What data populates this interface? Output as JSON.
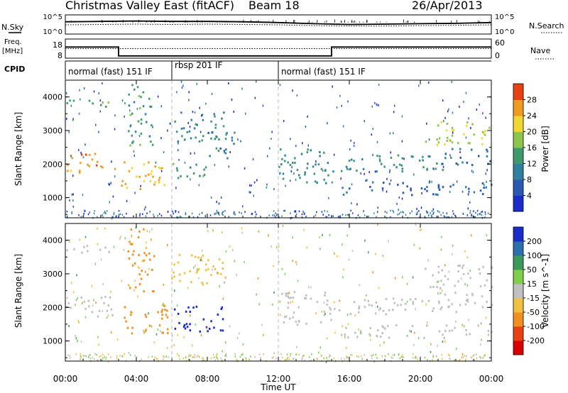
{
  "header": {
    "station": "Christmas Valley East (fitACF)",
    "beam": "Beam 18",
    "date": "26/Apr/2013"
  },
  "top_panels": {
    "nsky_label": "N.Sky",
    "nsearch_label": "N.Search",
    "noise_left_ticks": [
      "10^5",
      "10^0"
    ],
    "noise_right_ticks": [
      "10^5",
      "10^0"
    ],
    "freq_label_1": "Freq.",
    "freq_label_2": "[MHz]",
    "freq_left_ticks": [
      "18",
      "8"
    ],
    "nave_label": "Nave",
    "nave_right_ticks": [
      "60",
      "0"
    ],
    "cpid_label": "CPID",
    "cpid_segments": [
      {
        "label": "normal (fast) 151 IF",
        "start": 0,
        "end": 6
      },
      {
        "label": "rbsp 201 IF",
        "start": 6,
        "end": 12
      },
      {
        "label": "normal (fast) 151 IF",
        "start": 12,
        "end": 24
      }
    ]
  },
  "chart_data": [
    {
      "type": "line",
      "title": "Noise",
      "series": [
        {
          "name": "N.Sky",
          "x": [
            0,
            2,
            4,
            6,
            8,
            10,
            12,
            14,
            16,
            18,
            20,
            22,
            24
          ],
          "values": [
            3.2,
            3.3,
            3.4,
            3.3,
            3.3,
            3.2,
            3.0,
            2.7,
            2.5,
            2.6,
            2.7,
            2.8,
            3.0
          ]
        },
        {
          "name": "N.Search",
          "x": [
            0,
            2,
            4,
            6,
            8,
            10,
            12,
            14,
            16,
            18,
            20,
            22,
            24
          ],
          "values": [
            2.4,
            2.5,
            2.6,
            2.5,
            2.6,
            2.5,
            2.4,
            2.2,
            2.1,
            2.1,
            2.2,
            2.3,
            2.4
          ]
        }
      ]
    },
    {
      "type": "line",
      "title": "Frequency / Nave",
      "series": [
        {
          "name": "Freq",
          "x": [
            0,
            3,
            3,
            15,
            15,
            24
          ],
          "values": [
            15.5,
            15.5,
            9.5,
            9.5,
            15.5,
            15.5
          ]
        },
        {
          "name": "Nave",
          "x": [
            0,
            24
          ],
          "values": [
            30,
            30
          ]
        }
      ]
    },
    {
      "type": "heatmap",
      "title": "Power",
      "xlabel": "Time UT",
      "ylabel": "Slant Range [km]",
      "xlim": [
        0,
        24
      ],
      "ylim": [
        400,
        4500
      ],
      "x_ticks": [
        "00:00",
        "04:00",
        "08:00",
        "12:00",
        "16:00",
        "20:00",
        "00:00"
      ],
      "y_ticks": [
        1000,
        2000,
        3000,
        4000
      ],
      "colorbar_label": "Power [dB]",
      "colorbar_ticks": [
        4,
        8,
        12,
        16,
        20,
        24,
        28
      ],
      "scatter_bands": [
        {
          "t0": 0,
          "t1": 2.8,
          "r0": 1750,
          "r1": 2350,
          "level": 26
        },
        {
          "t0": 0,
          "t1": 2.5,
          "r0": 3650,
          "r1": 3950,
          "level": 14
        },
        {
          "t0": 3.0,
          "t1": 5.8,
          "r0": 1250,
          "r1": 2100,
          "level": 24
        },
        {
          "t0": 3.5,
          "t1": 5.0,
          "r0": 2500,
          "r1": 4400,
          "level": 14
        },
        {
          "t0": 5.8,
          "t1": 9.0,
          "r0": 2700,
          "r1": 3600,
          "level": 12
        },
        {
          "t0": 6.0,
          "t1": 8.0,
          "r0": 1500,
          "r1": 2100,
          "level": 14
        },
        {
          "t0": 8.0,
          "t1": 9.5,
          "r0": 2000,
          "r1": 3000,
          "level": 10
        },
        {
          "t0": 12.0,
          "t1": 15.0,
          "r0": 1450,
          "r1": 2500,
          "level": 13
        },
        {
          "t0": 14.5,
          "t1": 22.0,
          "r0": 1800,
          "r1": 2300,
          "level": 13
        },
        {
          "t0": 15.5,
          "t1": 24.0,
          "r0": 1100,
          "r1": 1500,
          "level": 7
        },
        {
          "t0": 20.0,
          "t1": 24.0,
          "r0": 2600,
          "r1": 3300,
          "level": 19
        },
        {
          "t0": 21.0,
          "t1": 24.0,
          "r0": 2000,
          "r1": 2500,
          "level": 9
        }
      ]
    },
    {
      "type": "heatmap",
      "title": "Velocity",
      "xlabel": "Time UT",
      "ylabel": "Slant Range [km]",
      "xlim": [
        0,
        24
      ],
      "ylim": [
        400,
        4500
      ],
      "x_ticks": [
        "00:00",
        "04:00",
        "08:00",
        "12:00",
        "16:00",
        "20:00",
        "00:00"
      ],
      "y_ticks": [
        1000,
        2000,
        3000,
        4000
      ],
      "colorbar_label": "Velocity [m s^-1]",
      "colorbar_ticks": [
        200,
        100,
        50,
        15,
        -15,
        -50,
        -100,
        -200
      ],
      "scatter_bands": [
        {
          "t0": 0,
          "t1": 2.8,
          "r0": 1750,
          "r1": 2350,
          "level": 0
        },
        {
          "t0": 0,
          "t1": 2.5,
          "r0": 3650,
          "r1": 3950,
          "level": 0
        },
        {
          "t0": 3.0,
          "t1": 5.8,
          "r0": 1250,
          "r1": 2100,
          "level": -70
        },
        {
          "t0": 3.5,
          "t1": 5.0,
          "r0": 2500,
          "r1": 4400,
          "level": -60
        },
        {
          "t0": 5.8,
          "t1": 9.0,
          "r0": 2700,
          "r1": 3600,
          "level": -30
        },
        {
          "t0": 6.0,
          "t1": 9.0,
          "r0": 1300,
          "r1": 2100,
          "level": 220
        },
        {
          "t0": 12.0,
          "t1": 15.0,
          "r0": 1450,
          "r1": 2500,
          "level": 0
        },
        {
          "t0": 14.5,
          "t1": 22.0,
          "r0": 1800,
          "r1": 2300,
          "level": 0
        },
        {
          "t0": 15.5,
          "t1": 24.0,
          "r0": 1100,
          "r1": 1500,
          "level": 0
        },
        {
          "t0": 20.0,
          "t1": 24.0,
          "r0": 2600,
          "r1": 3300,
          "level": 0
        },
        {
          "t0": 21.0,
          "t1": 24.0,
          "r0": 2000,
          "r1": 2500,
          "level": 0
        }
      ]
    }
  ]
}
